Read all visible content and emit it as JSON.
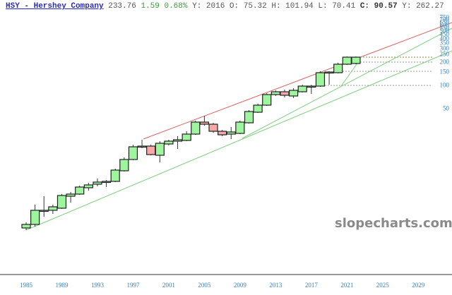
{
  "header": {
    "symbol_link": "HSY - Hershey Company",
    "last": "233.76",
    "change": "1.59",
    "change_pct": "0.68%",
    "year_label": "Y:",
    "year": "2016",
    "open_label": "O:",
    "open": "75.32",
    "high_label": "H:",
    "high": "101.94",
    "low_label": "L:",
    "low": "70.41",
    "close_label": "C:",
    "close": "90.57",
    "y_label": "Y:",
    "y_value": "262.27"
  },
  "watermark": "slopecharts.com",
  "colors": {
    "up_fill": "#9ef59e",
    "down_fill": "#f5a8a8",
    "candle_border": "#222222",
    "trend_red": "#e06060",
    "trend_green": "#7fcf7f",
    "axis_text": "#3a7fb5",
    "symbol_link": "#2b2bb8",
    "change_text": "#3a9a3a"
  },
  "chart_data": {
    "type": "candlestick",
    "title": "HSY - Hershey Company (yearly, log scale)",
    "xlabel": "",
    "ylabel": "",
    "x_ticks": [
      "1985",
      "1989",
      "1993",
      "1997",
      "2001",
      "2005",
      "2009",
      "2013",
      "2017",
      "2021",
      "2025",
      "2029"
    ],
    "y_ticks": [
      750,
      700,
      650,
      600,
      550,
      500,
      450,
      400,
      350,
      300,
      250,
      200,
      150,
      100,
      50
    ],
    "yscale": "log",
    "horizontal_levels": [
      230,
      205,
      150,
      100
    ],
    "trendlines": [
      {
        "color": "red",
        "from_year": 1998,
        "to_year": 2030,
        "role": "upper channel"
      },
      {
        "color": "green",
        "from_year": 1985,
        "to_year": 2030,
        "role": "long-term support"
      },
      {
        "color": "green",
        "from_year": 2009,
        "to_year": 2030,
        "role": "support"
      }
    ],
    "candles": [
      {
        "year": 1985,
        "dir": "up"
      },
      {
        "year": 1986,
        "dir": "up"
      },
      {
        "year": 1987,
        "dir": "flat"
      },
      {
        "year": 1988,
        "dir": "up"
      },
      {
        "year": 1989,
        "dir": "up"
      },
      {
        "year": 1990,
        "dir": "up"
      },
      {
        "year": 1991,
        "dir": "up"
      },
      {
        "year": 1992,
        "dir": "up"
      },
      {
        "year": 1993,
        "dir": "up"
      },
      {
        "year": 1994,
        "dir": "flat"
      },
      {
        "year": 1995,
        "dir": "up"
      },
      {
        "year": 1996,
        "dir": "up"
      },
      {
        "year": 1997,
        "dir": "up"
      },
      {
        "year": 1998,
        "dir": "flat"
      },
      {
        "year": 1999,
        "dir": "down"
      },
      {
        "year": 2000,
        "dir": "up"
      },
      {
        "year": 2001,
        "dir": "up"
      },
      {
        "year": 2002,
        "dir": "up"
      },
      {
        "year": 2003,
        "dir": "up"
      },
      {
        "year": 2004,
        "dir": "up"
      },
      {
        "year": 2005,
        "dir": "down"
      },
      {
        "year": 2006,
        "dir": "down"
      },
      {
        "year": 2007,
        "dir": "down"
      },
      {
        "year": 2008,
        "dir": "up"
      },
      {
        "year": 2009,
        "dir": "up"
      },
      {
        "year": 2010,
        "dir": "up"
      },
      {
        "year": 2011,
        "dir": "up"
      },
      {
        "year": 2012,
        "dir": "up"
      },
      {
        "year": 2013,
        "dir": "up"
      },
      {
        "year": 2014,
        "dir": "down"
      },
      {
        "year": 2015,
        "dir": "up"
      },
      {
        "year": 2016,
        "dir": "up",
        "open": 75.32,
        "high": 101.94,
        "low": 70.41,
        "close": 90.57
      },
      {
        "year": 2017,
        "dir": "flat"
      },
      {
        "year": 2018,
        "dir": "up"
      },
      {
        "year": 2019,
        "dir": "up"
      },
      {
        "year": 2020,
        "dir": "flat"
      },
      {
        "year": 2021,
        "dir": "up"
      },
      {
        "year": 2022,
        "dir": "up",
        "close": 233.76
      }
    ]
  }
}
